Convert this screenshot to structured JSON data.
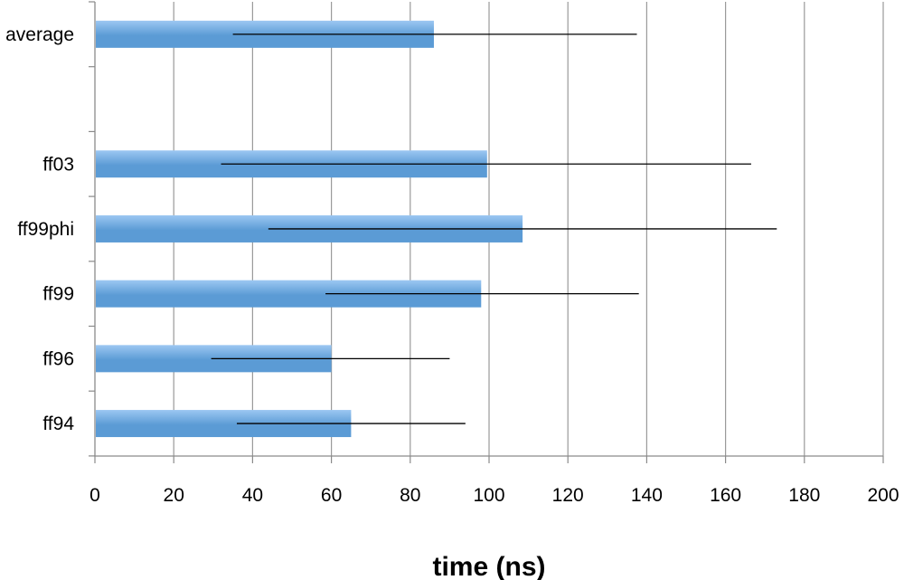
{
  "chart_data": {
    "type": "bar",
    "orientation": "horizontal",
    "title": "",
    "xlabel": "time (ns)",
    "ylabel": "",
    "xlim": [
      0,
      200
    ],
    "x_ticks": [
      "0",
      "20",
      "40",
      "60",
      "80",
      "100",
      "120",
      "140",
      "160",
      "180",
      "200"
    ],
    "grid": true,
    "categories": [
      "average",
      "",
      "ff03",
      "ff99phi",
      "ff99",
      "ff96",
      "ff94"
    ],
    "values": [
      86,
      null,
      99.5,
      108.5,
      98,
      60,
      65
    ],
    "error_low": [
      35,
      null,
      32,
      44,
      58.5,
      29.5,
      36
    ],
    "error_high": [
      137.5,
      null,
      166.5,
      173,
      138,
      90,
      94
    ],
    "colors": {
      "bar": "#5b9bd5",
      "bar_light": "#9cc7f2",
      "error": "#000000",
      "grid": "#9a9a9a"
    }
  }
}
